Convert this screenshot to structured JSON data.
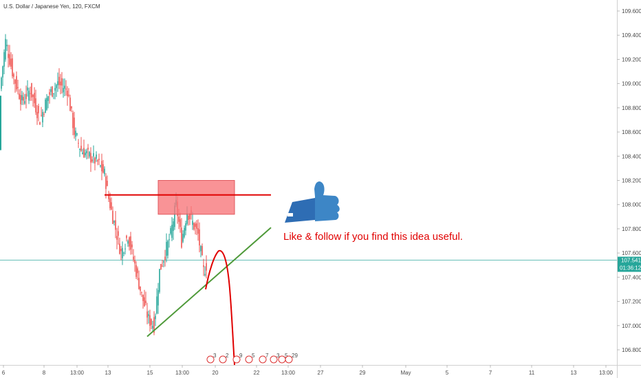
{
  "chart_data": {
    "type": "candlestick",
    "title": "U.S. Dollar / Japanese Yen, 120, FXCM",
    "ylim": [
      106.75,
      109.7
    ],
    "y_ticks": [
      "109.600",
      "109.400",
      "109.200",
      "109.000",
      "108.800",
      "108.600",
      "108.400",
      "108.200",
      "108.000",
      "107.800",
      "107.600",
      "107.400",
      "107.200",
      "107.000",
      "106.800"
    ],
    "x_ticks": [
      "6",
      "8",
      "13:00",
      "13",
      "15",
      "13:00",
      "20",
      "22",
      "13:00",
      "27",
      "29",
      "May",
      "5",
      "7",
      "11",
      "13",
      "13:00"
    ],
    "price_tag": {
      "price": "107.541",
      "countdown": "01:36:12",
      "color": "#26a69a"
    },
    "candles": [],
    "annotations": {
      "note": "Like & follow if you find this idea useful.",
      "resistance_box": {
        "y_low": 107.92,
        "y_high": 108.2,
        "color": "#f7787c"
      },
      "resistance_line": {
        "y": 108.08,
        "color": "#e00000"
      },
      "trend_line": {
        "y_start": 106.91,
        "y_end": 107.81,
        "color": "#4f9a3a"
      },
      "projection_curve": {
        "color": "#e00000"
      },
      "thumb_icon": "thumbs-up-icon",
      "event_markers": [
        "3",
        "2",
        "9",
        "5",
        "7",
        "3",
        "5",
        "29"
      ]
    }
  }
}
